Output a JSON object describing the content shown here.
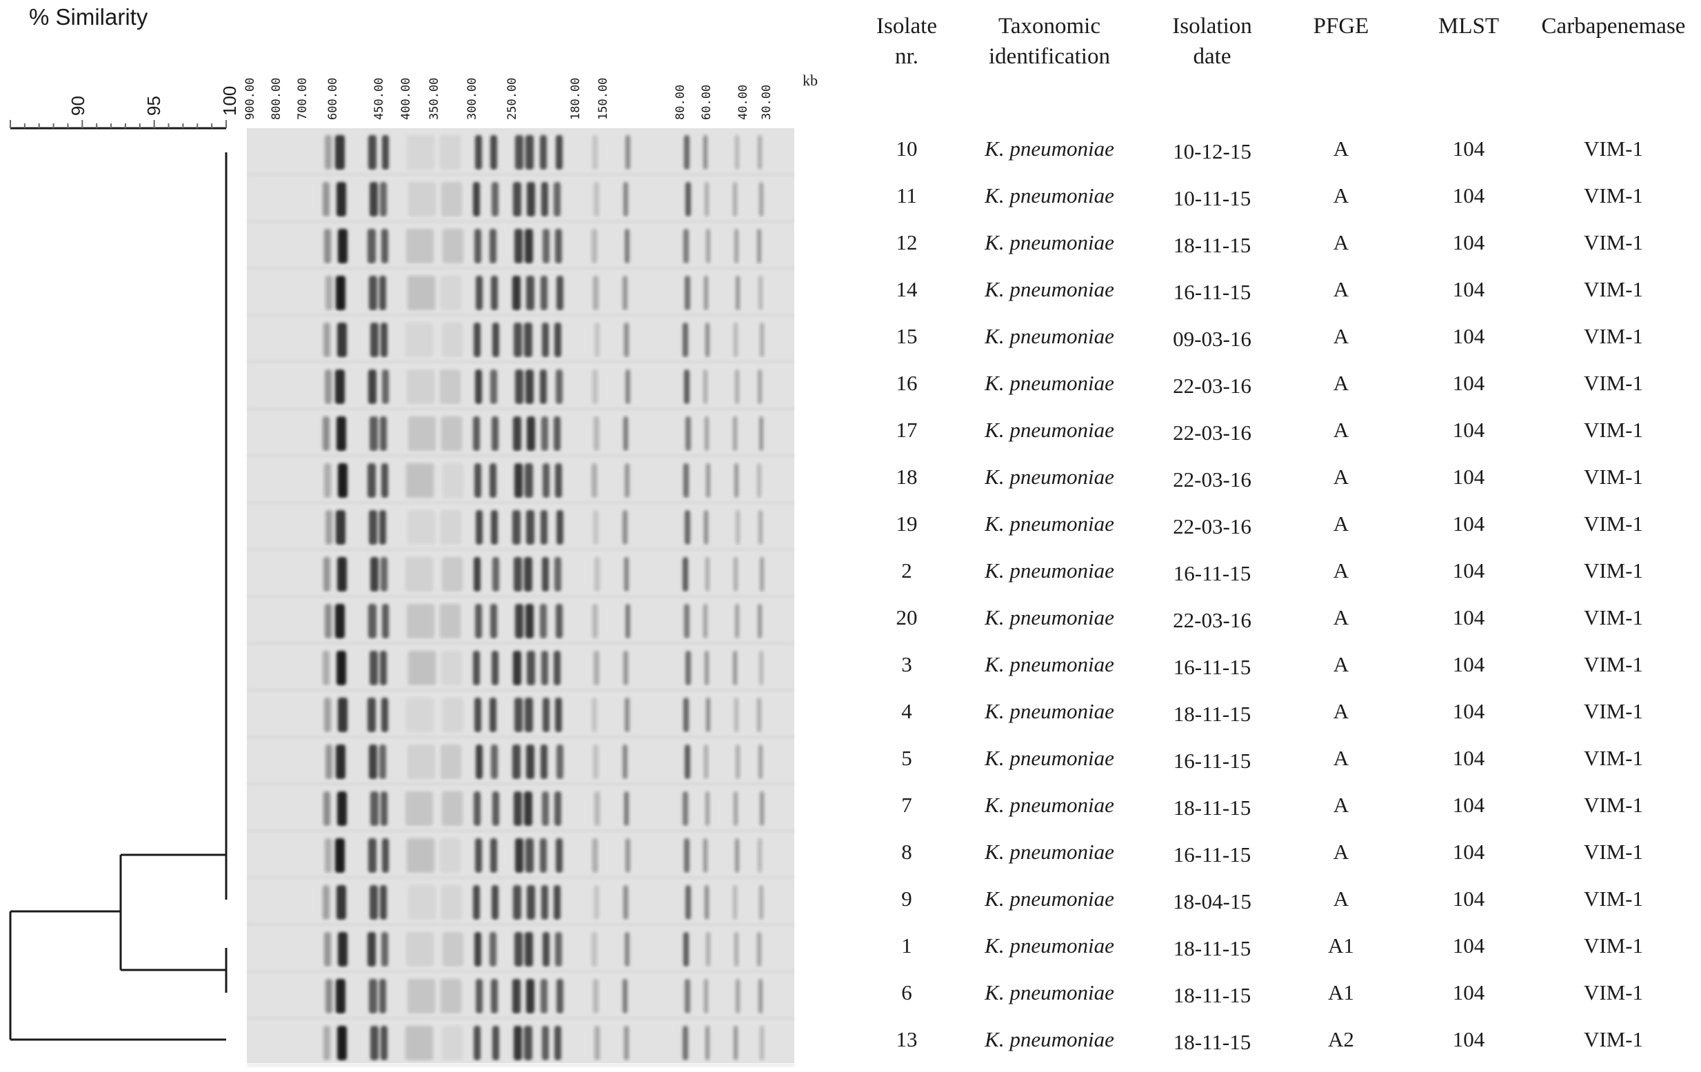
{
  "title": "% Similarity",
  "similarity_scale": {
    "labels": [
      "90",
      "95",
      "100"
    ],
    "range": [
      85,
      100
    ]
  },
  "kb_unit": "kb",
  "kb_markers": [
    "900.00",
    "800.00",
    "700.00",
    "600.00",
    "450.00",
    "400.00",
    "350.00",
    "300.00",
    "250.00",
    "180.00",
    "150.00",
    "80.00",
    "60.00",
    "40.00",
    "30.00"
  ],
  "columns": [
    {
      "key": "isolate",
      "lines": [
        "Isolate",
        "nr."
      ]
    },
    {
      "key": "taxon",
      "lines": [
        "Taxonomic",
        "identification"
      ]
    },
    {
      "key": "date",
      "lines": [
        "Isolation",
        "date"
      ]
    },
    {
      "key": "pfge",
      "lines": [
        "PFGE"
      ]
    },
    {
      "key": "mlst",
      "lines": [
        "MLST"
      ]
    },
    {
      "key": "carb",
      "lines": [
        "Carbapenemase"
      ]
    }
  ],
  "rows": [
    {
      "isolate": "10",
      "taxon": "K. pneumoniae",
      "date": "10-12-15",
      "pfge": "A",
      "mlst": "104",
      "carb": "VIM-1"
    },
    {
      "isolate": "11",
      "taxon": "K. pneumoniae",
      "date": "10-11-15",
      "pfge": "A",
      "mlst": "104",
      "carb": "VIM-1"
    },
    {
      "isolate": "12",
      "taxon": "K. pneumoniae",
      "date": "18-11-15",
      "pfge": "A",
      "mlst": "104",
      "carb": "VIM-1"
    },
    {
      "isolate": "14",
      "taxon": "K. pneumoniae",
      "date": "16-11-15",
      "pfge": "A",
      "mlst": "104",
      "carb": "VIM-1"
    },
    {
      "isolate": "15",
      "taxon": "K. pneumoniae",
      "date": "09-03-16",
      "pfge": "A",
      "mlst": "104",
      "carb": "VIM-1"
    },
    {
      "isolate": "16",
      "taxon": "K. pneumoniae",
      "date": "22-03-16",
      "pfge": "A",
      "mlst": "104",
      "carb": "VIM-1"
    },
    {
      "isolate": "17",
      "taxon": "K. pneumoniae",
      "date": "22-03-16",
      "pfge": "A",
      "mlst": "104",
      "carb": "VIM-1"
    },
    {
      "isolate": "18",
      "taxon": "K. pneumoniae",
      "date": "22-03-16",
      "pfge": "A",
      "mlst": "104",
      "carb": "VIM-1"
    },
    {
      "isolate": "19",
      "taxon": "K. pneumoniae",
      "date": "22-03-16",
      "pfge": "A",
      "mlst": "104",
      "carb": "VIM-1"
    },
    {
      "isolate": "2",
      "taxon": "K. pneumoniae",
      "date": "16-11-15",
      "pfge": "A",
      "mlst": "104",
      "carb": "VIM-1"
    },
    {
      "isolate": "20",
      "taxon": "K. pneumoniae",
      "date": "22-03-16",
      "pfge": "A",
      "mlst": "104",
      "carb": "VIM-1"
    },
    {
      "isolate": "3",
      "taxon": "K. pneumoniae",
      "date": "16-11-15",
      "pfge": "A",
      "mlst": "104",
      "carb": "VIM-1"
    },
    {
      "isolate": "4",
      "taxon": "K. pneumoniae",
      "date": "18-11-15",
      "pfge": "A",
      "mlst": "104",
      "carb": "VIM-1"
    },
    {
      "isolate": "5",
      "taxon": "K. pneumoniae",
      "date": "16-11-15",
      "pfge": "A",
      "mlst": "104",
      "carb": "VIM-1"
    },
    {
      "isolate": "7",
      "taxon": "K. pneumoniae",
      "date": "18-11-15",
      "pfge": "A",
      "mlst": "104",
      "carb": "VIM-1"
    },
    {
      "isolate": "8",
      "taxon": "K. pneumoniae",
      "date": "16-11-15",
      "pfge": "A",
      "mlst": "104",
      "carb": "VIM-1"
    },
    {
      "isolate": "9",
      "taxon": "K. pneumoniae",
      "date": "18-04-15",
      "pfge": "A",
      "mlst": "104",
      "carb": "VIM-1"
    },
    {
      "isolate": "1",
      "taxon": "K. pneumoniae",
      "date": "18-11-15",
      "pfge": "A1",
      "mlst": "104",
      "carb": "VIM-1"
    },
    {
      "isolate": "6",
      "taxon": "K. pneumoniae",
      "date": "18-11-15",
      "pfge": "A1",
      "mlst": "104",
      "carb": "VIM-1"
    },
    {
      "isolate": "13",
      "taxon": "K. pneumoniae",
      "date": "18-11-15",
      "pfge": "A2",
      "mlst": "104",
      "carb": "VIM-1"
    }
  ]
}
